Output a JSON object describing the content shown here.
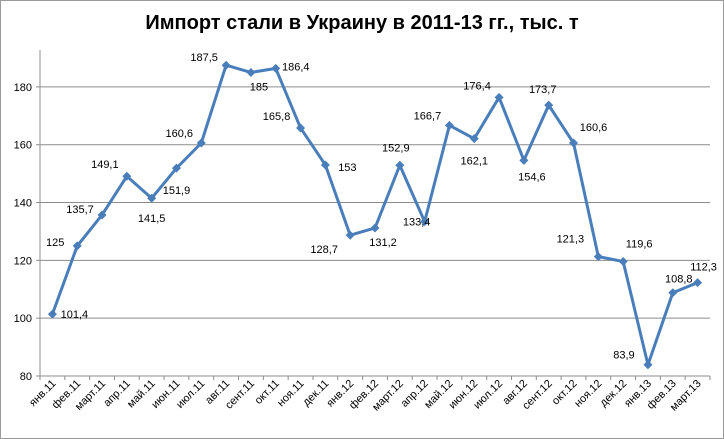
{
  "chart_data": {
    "type": "line",
    "title": "Импорт стали в Украину в 2011-13 гг., тыс. т",
    "xlabel": "",
    "ylabel": "",
    "ylim": [
      80,
      190
    ],
    "yticks": [
      80,
      100,
      120,
      140,
      160,
      180
    ],
    "grid": "horizontal",
    "legend": "none",
    "line_color": "#4a7ebb",
    "categories": [
      "янв.11",
      "фев.11",
      "март.11",
      "апр.11",
      "май.11",
      "июн.11",
      "июл.11",
      "авг.11",
      "сент.11",
      "окт.11",
      "ноя.11",
      "дек.11",
      "янв.12",
      "фев.12",
      "март.12",
      "апр.12",
      "май.12",
      "июн.12",
      "июл.12",
      "авг.12",
      "сент.12",
      "окт.12",
      "ноя.12",
      "дек.12",
      "янв.13",
      "фев.13",
      "март.13"
    ],
    "values": [
      101.4,
      125,
      135.7,
      149.1,
      141.5,
      151.9,
      160.6,
      187.5,
      185,
      186.4,
      165.8,
      153,
      128.7,
      131.2,
      152.9,
      133.4,
      166.7,
      162.1,
      176.4,
      154.6,
      173.7,
      160.6,
      121.3,
      119.6,
      83.9,
      108.8,
      112.3
    ],
    "data_labels": [
      "101,4",
      "125",
      "135,7",
      "149,1",
      "141,5",
      "151,9",
      "160,6",
      "187,5",
      "185",
      "186,4",
      "165,8",
      "153",
      "128,7",
      "131,2",
      "152,9",
      "133,4",
      "166,7",
      "162,1",
      "176,4",
      "154,6",
      "173,7",
      "160,6",
      "121,3",
      "119,6",
      "83,9",
      "108,8",
      "112,3"
    ]
  }
}
